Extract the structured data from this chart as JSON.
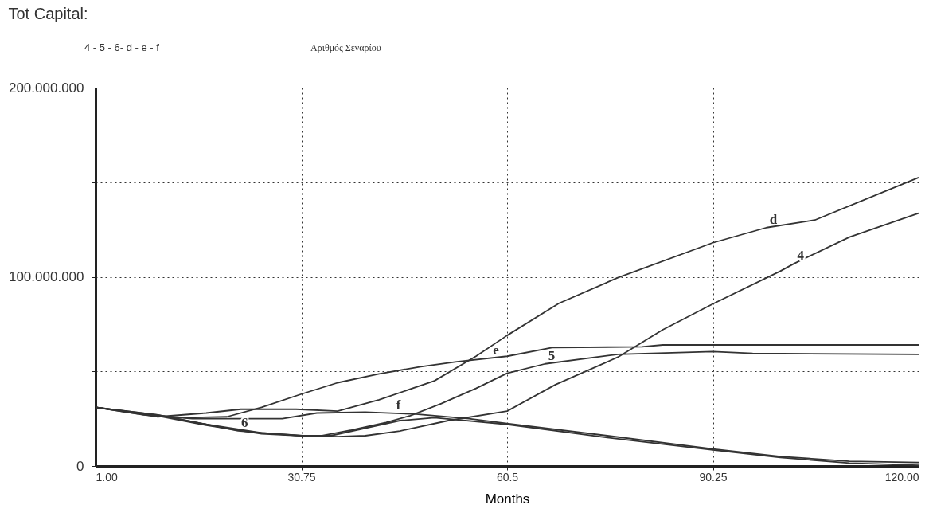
{
  "chart_data": {
    "type": "line",
    "title": "Tot Capital:",
    "subtitle": "4 - 5 - 6- d - e - f",
    "xlabel": "Months",
    "xlim": [
      1,
      120
    ],
    "xticks": [
      {
        "value": 1,
        "label": "1.00"
      },
      30.75,
      60.5,
      90.25,
      {
        "value": 120,
        "label": "120.00"
      }
    ],
    "ylim": [
      0,
      200000000
    ],
    "yticks": [
      {
        "value": 0,
        "label": "0"
      },
      {
        "value": 50000000,
        "label": null
      },
      {
        "value": 100000000,
        "label": "100.000.000"
      },
      {
        "value": 150000000,
        "label": null
      },
      {
        "value": 200000000,
        "label": "200.000.000"
      }
    ],
    "grid": true,
    "legend": false,
    "marker": "none",
    "line_style": "solid",
    "annotations": [
      "Αριθμός Σεναρίου",
      {
        "text": "d",
        "x": 98,
        "y": 126000000
      },
      {
        "text": "4",
        "x": 102,
        "y": 107000000
      },
      {
        "text": "e",
        "x": 58,
        "y": 57000000
      },
      {
        "text": "5",
        "x": 66,
        "y": 54000000
      },
      {
        "text": "f",
        "x": 44,
        "y": 27900000
      },
      {
        "text": "6",
        "x": 21.6,
        "y": 18600000
      }
    ],
    "series": [
      {
        "color": "#333333",
        "x": [
          1,
          10,
          17,
          25,
          31,
          36,
          40,
          45,
          52,
          60.5,
          67.5,
          76.5,
          83,
          90.25,
          100,
          102,
          110,
          120
        ],
        "values": [
          31000000,
          27000000,
          22000000,
          17500000,
          16000000,
          15500000,
          16000000,
          18500000,
          24000000,
          29000000,
          43000000,
          57500000,
          72000000,
          85700000,
          103000000,
          107000000,
          121000000,
          133600000
        ]
      },
      {
        "color": "#333333",
        "x": [
          1,
          10,
          17,
          25,
          33,
          38,
          43,
          46.5,
          51,
          56,
          60.5,
          66,
          76.5,
          90.25,
          96,
          120
        ],
        "values": [
          31000000,
          26500000,
          21500000,
          17000000,
          15500000,
          19000000,
          23000000,
          26600000,
          33000000,
          41000000,
          49000000,
          54000000,
          59000000,
          60500000,
          59500000,
          59000000
        ]
      },
      {
        "color": "#333333",
        "x": [
          1,
          10,
          17,
          21.6,
          25,
          30.75,
          35,
          40,
          45,
          50,
          60.5,
          75,
          90.25,
          100,
          110,
          120
        ],
        "values": [
          31000000,
          27000000,
          22000000,
          18600000,
          17500000,
          16000000,
          16000000,
          20000000,
          24000000,
          25500000,
          22000000,
          15000000,
          8500000,
          4500000,
          1500000,
          400000
        ]
      },
      {
        "color": "#333333",
        "x": [
          1,
          10,
          17,
          22,
          30,
          36,
          42,
          50,
          56,
          60.5,
          68,
          76.5,
          90.25,
          98,
          105,
          120
        ],
        "values": [
          31000000,
          26000000,
          28000000,
          30000000,
          30000000,
          29000000,
          35000000,
          45000000,
          58000000,
          69000000,
          86000000,
          99500000,
          118000000,
          126000000,
          130000000,
          152500000
        ]
      },
      {
        "color": "#333333",
        "x": [
          1,
          8,
          14,
          20,
          25,
          30.75,
          36,
          42,
          48,
          53,
          60.5,
          67,
          80,
          83,
          120
        ],
        "values": [
          31000000,
          27000000,
          25500000,
          26000000,
          31000000,
          38000000,
          44000000,
          48700000,
          52500000,
          55000000,
          58000000,
          62600000,
          63000000,
          64000000,
          64000000
        ]
      },
      {
        "color": "#333333",
        "x": [
          1,
          10,
          15,
          28,
          33,
          40,
          47,
          55,
          60.5,
          75,
          90.25,
          100,
          110,
          120
        ],
        "values": [
          31000000,
          26500000,
          25000000,
          25000000,
          28000000,
          28500000,
          27500000,
          25000000,
          22500000,
          16000000,
          9000000,
          5000000,
          2500000,
          1800000
        ]
      }
    ]
  }
}
